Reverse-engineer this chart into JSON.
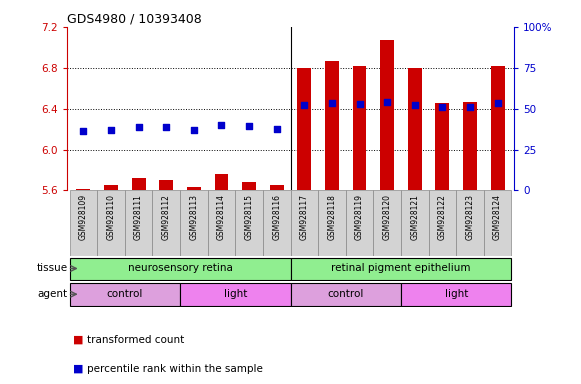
{
  "title": "GDS4980 / 10393408",
  "samples": [
    "GSM928109",
    "GSM928110",
    "GSM928111",
    "GSM928112",
    "GSM928113",
    "GSM928114",
    "GSM928115",
    "GSM928116",
    "GSM928117",
    "GSM928118",
    "GSM928119",
    "GSM928120",
    "GSM928121",
    "GSM928122",
    "GSM928123",
    "GSM928124"
  ],
  "red_values": [
    5.61,
    5.65,
    5.72,
    5.7,
    5.63,
    5.76,
    5.68,
    5.65,
    6.8,
    6.87,
    6.82,
    7.07,
    6.8,
    6.46,
    6.47,
    6.82
  ],
  "blue_values": [
    6.18,
    6.19,
    6.22,
    6.22,
    6.19,
    6.24,
    6.23,
    6.2,
    6.44,
    6.46,
    6.45,
    6.47,
    6.44,
    6.42,
    6.42,
    6.46
  ],
  "ylim_left": [
    5.6,
    7.2
  ],
  "ylim_right": [
    0,
    100
  ],
  "yticks_left": [
    5.6,
    6.0,
    6.4,
    6.8,
    7.2
  ],
  "yticks_right": [
    0,
    25,
    50,
    75,
    100
  ],
  "ytick_right_labels": [
    "0",
    "25",
    "50",
    "75",
    "100%"
  ],
  "grid_lines": [
    6.0,
    6.4,
    6.8
  ],
  "tissue_groups": [
    {
      "label": "neurosensory retina",
      "start": 0,
      "end": 8,
      "color": "#90EE90"
    },
    {
      "label": "retinal pigment epithelium",
      "start": 8,
      "end": 16,
      "color": "#90EE90"
    }
  ],
  "agent_groups": [
    {
      "label": "control",
      "start": 0,
      "end": 4,
      "color": "#DDA0DD"
    },
    {
      "label": "light",
      "start": 4,
      "end": 8,
      "color": "#EE82EE"
    },
    {
      "label": "control",
      "start": 8,
      "end": 12,
      "color": "#DDA0DD"
    },
    {
      "label": "light",
      "start": 12,
      "end": 16,
      "color": "#EE82EE"
    }
  ],
  "bar_color": "#CC0000",
  "dot_color": "#0000CC",
  "bar_bottom": 5.6,
  "legend_items": [
    {
      "color": "#CC0000",
      "label": "transformed count"
    },
    {
      "color": "#0000CC",
      "label": "percentile rank within the sample"
    }
  ],
  "tissue_label": "tissue",
  "agent_label": "agent",
  "left_axis_color": "#CC0000",
  "right_axis_color": "#0000CC",
  "bar_width": 0.5
}
